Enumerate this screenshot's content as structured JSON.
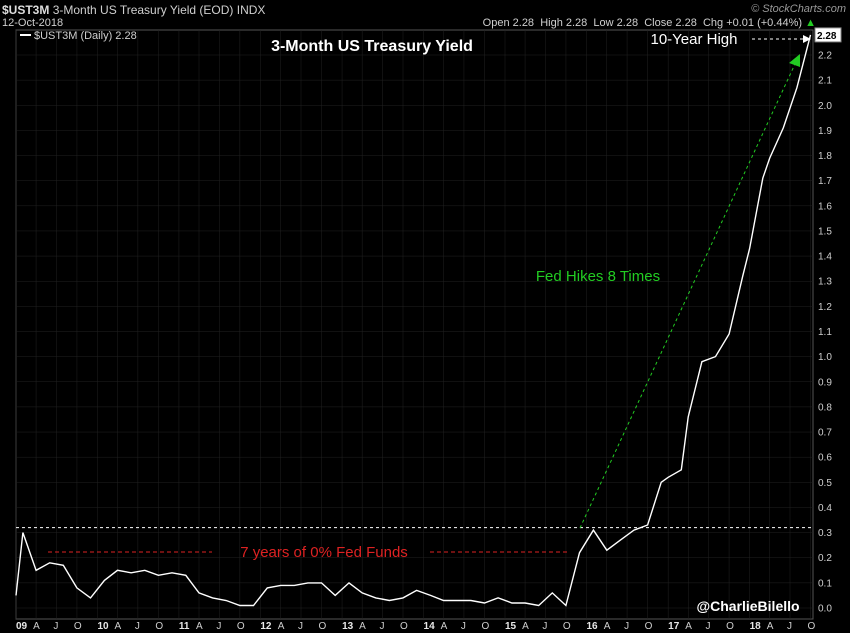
{
  "header": {
    "symbol": "$UST3M",
    "name": "3-Month US Treasury Yield (EOD)",
    "exchange": "INDX",
    "date": "12-Oct-2018",
    "brand": "© StockCharts.com",
    "open_label": "Open",
    "open": "2.28",
    "high_label": "High",
    "high": "2.28",
    "low_label": "Low",
    "low": "2.28",
    "close_label": "Close",
    "close": "2.28",
    "chg_label": "Chg",
    "chg": "+0.01 (+0.44%)"
  },
  "legend": {
    "text": "$UST3M (Daily) 2.28"
  },
  "colors": {
    "background": "#000000",
    "line": "#ffffff",
    "green": "#22cc22",
    "red": "#dd2222",
    "grid": "#222222"
  },
  "chart_data": {
    "type": "line",
    "title": "3-Month US Treasury Yield",
    "ylim": [
      0,
      2.3
    ],
    "y_ticks": [
      "0.0",
      "0.1",
      "0.2",
      "0.3",
      "0.4",
      "0.5",
      "0.6",
      "0.7",
      "0.8",
      "0.9",
      "1.0",
      "1.1",
      "1.2",
      "1.3",
      "1.4",
      "1.5",
      "1.6",
      "1.7",
      "1.8",
      "1.9",
      "2.0",
      "2.1",
      "2.2"
    ],
    "x_ticks": [
      "09",
      "A",
      "J",
      "O",
      "10",
      "A",
      "J",
      "O",
      "11",
      "A",
      "J",
      "O",
      "12",
      "A",
      "J",
      "O",
      "13",
      "A",
      "J",
      "O",
      "14",
      "A",
      "J",
      "O",
      "15",
      "A",
      "J",
      "O",
      "16",
      "A",
      "J",
      "O",
      "17",
      "A",
      "J",
      "O",
      "18",
      "A",
      "J",
      "O"
    ],
    "year_ticks": [
      "09",
      "10",
      "11",
      "12",
      "13",
      "14",
      "15",
      "16",
      "17",
      "18"
    ],
    "last_value_label": "2.28",
    "reference_line": {
      "value": 0.32
    },
    "series": [
      {
        "x": [
          "2009-01",
          "2009-02",
          "2009-04",
          "2009-06",
          "2009-08",
          "2009-10",
          "2009-12",
          "2010-02",
          "2010-04",
          "2010-06",
          "2010-08",
          "2010-10",
          "2010-12",
          "2011-02",
          "2011-04",
          "2011-06",
          "2011-08",
          "2011-10",
          "2011-12",
          "2012-02",
          "2012-04",
          "2012-06",
          "2012-08",
          "2012-10",
          "2012-12",
          "2013-02",
          "2013-04",
          "2013-06",
          "2013-08",
          "2013-10",
          "2013-12",
          "2014-02",
          "2014-04",
          "2014-06",
          "2014-08",
          "2014-10",
          "2014-12",
          "2015-02",
          "2015-04",
          "2015-06",
          "2015-08",
          "2015-10",
          "2015-12",
          "2016-02",
          "2016-04",
          "2016-06",
          "2016-08",
          "2016-10",
          "2016-12",
          "2017-01",
          "2017-03",
          "2017-04",
          "2017-06",
          "2017-08",
          "2017-10",
          "2017-12",
          "2018-01",
          "2018-03",
          "2018-04",
          "2018-06",
          "2018-08",
          "2018-10"
        ],
        "values": [
          0.05,
          0.3,
          0.15,
          0.18,
          0.17,
          0.08,
          0.04,
          0.11,
          0.15,
          0.14,
          0.15,
          0.13,
          0.14,
          0.13,
          0.06,
          0.04,
          0.03,
          0.01,
          0.01,
          0.08,
          0.09,
          0.09,
          0.1,
          0.1,
          0.05,
          0.1,
          0.06,
          0.04,
          0.03,
          0.04,
          0.07,
          0.05,
          0.03,
          0.03,
          0.03,
          0.02,
          0.04,
          0.02,
          0.02,
          0.01,
          0.06,
          0.01,
          0.22,
          0.31,
          0.23,
          0.27,
          0.31,
          0.33,
          0.5,
          0.52,
          0.55,
          0.76,
          0.98,
          1.0,
          1.09,
          1.32,
          1.43,
          1.71,
          1.79,
          1.91,
          2.07,
          2.28
        ]
      }
    ]
  },
  "annotations": {
    "ten_year_high": "10-Year High",
    "fed_hikes": "Fed Hikes 8 Times",
    "zero_rate": "7 years of 0% Fed Funds",
    "credit": "@CharlieBilello"
  }
}
